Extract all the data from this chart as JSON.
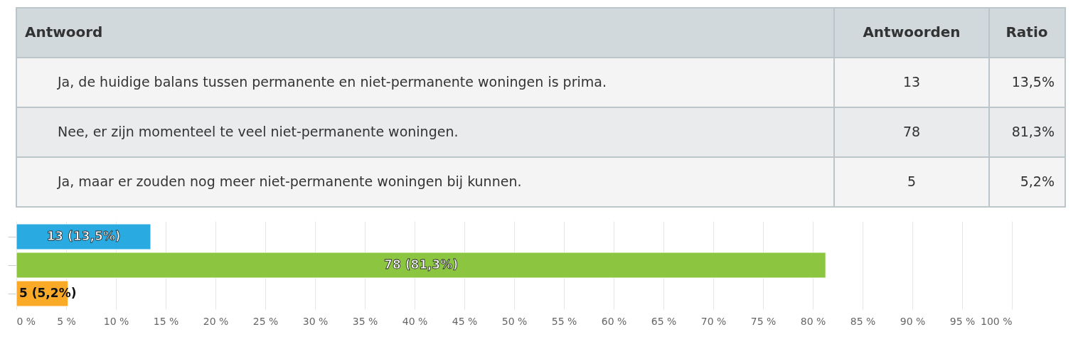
{
  "chart_data": {
    "type": "bar",
    "orientation": "horizontal",
    "categories": [
      null,
      null,
      null
    ],
    "values": [
      13.5,
      81.3,
      5.2
    ],
    "colors": [
      "#29aae1",
      "#8cc540",
      "#fbaa27"
    ],
    "value_labels": [
      "13 (13,5%)",
      "78 (81,3%)",
      "5 (5,2%)"
    ],
    "annotations": [
      "Antwoord",
      "Antwoorden",
      "Ratio",
      "Ja, de huidige balans tussen permanente en niet-permanente woningen is prima.",
      "13",
      "13,5%",
      "Nee, er zijn momenteel te veel niet-permanente woningen.",
      "78",
      "81,3%",
      "Ja, maar er zouden nog meer niet-permanente woningen bij kunnen.",
      "5",
      "5,2%"
    ],
    "xlim": [
      0,
      100
    ],
    "xticks": [
      {
        "value": 0,
        "label": "0 %"
      },
      {
        "value": 5,
        "label": "5 %"
      },
      {
        "value": 10,
        "label": "10 %"
      },
      {
        "value": 15,
        "label": "15 %"
      },
      {
        "value": 20,
        "label": "20 %"
      },
      {
        "value": 25,
        "label": "25 %"
      },
      {
        "value": 30,
        "label": "30 %"
      },
      {
        "value": 35,
        "label": "35 %"
      },
      {
        "value": 40,
        "label": "40 %"
      },
      {
        "value": 45,
        "label": "45 %"
      },
      {
        "value": 50,
        "label": "50 %"
      },
      {
        "value": 55,
        "label": "55 %"
      },
      {
        "value": 60,
        "label": "60 %"
      },
      {
        "value": 65,
        "label": "65 %"
      },
      {
        "value": 70,
        "label": "70 %"
      },
      {
        "value": 75,
        "label": "75 %"
      },
      {
        "value": 80,
        "label": "80 %"
      },
      {
        "value": 85,
        "label": "85 %"
      },
      {
        "value": 90,
        "label": "90 %"
      },
      {
        "value": 95,
        "label": "95 %"
      },
      {
        "value": 100,
        "label": "100 %"
      }
    ],
    "grid": "x",
    "tick_labels": "x"
  }
}
